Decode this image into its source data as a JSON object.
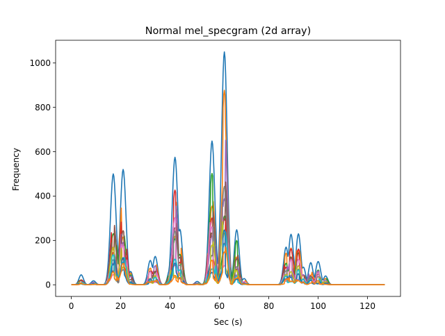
{
  "chart_data": {
    "type": "line",
    "title": "Normal mel_specgram (2d array)",
    "xlabel": "Sec (s)",
    "ylabel": "Frequency",
    "xlim": [
      -6.35,
      133.35
    ],
    "ylim": [
      -52.5,
      1102.5
    ],
    "xticks": [
      0,
      20,
      40,
      60,
      80,
      100,
      120
    ],
    "yticks": [
      0,
      200,
      400,
      600,
      800,
      1000
    ],
    "grid": false,
    "legend": "none",
    "series_count": 12,
    "series_colors": [
      "#1f77b4",
      "#ff7f0e",
      "#2ca02c",
      "#d62728",
      "#9467bd",
      "#8c564b",
      "#e377c2",
      "#7f7f7f",
      "#bcbd22",
      "#17becf"
    ],
    "envelope_peaks": [
      {
        "x": 4,
        "y": 45
      },
      {
        "x": 9,
        "y": 18
      },
      {
        "x": 17,
        "y": 500
      },
      {
        "x": 21,
        "y": 520
      },
      {
        "x": 24,
        "y": 60
      },
      {
        "x": 32,
        "y": 110
      },
      {
        "x": 34,
        "y": 128
      },
      {
        "x": 40,
        "y": 72
      },
      {
        "x": 42,
        "y": 575
      },
      {
        "x": 44,
        "y": 250
      },
      {
        "x": 51,
        "y": 15
      },
      {
        "x": 57,
        "y": 648
      },
      {
        "x": 62,
        "y": 1050
      },
      {
        "x": 67,
        "y": 248
      },
      {
        "x": 70,
        "y": 28
      },
      {
        "x": 87,
        "y": 170
      },
      {
        "x": 89,
        "y": 228
      },
      {
        "x": 92,
        "y": 230
      },
      {
        "x": 94,
        "y": 80
      },
      {
        "x": 97,
        "y": 100
      },
      {
        "x": 100,
        "y": 105
      },
      {
        "x": 103,
        "y": 40
      }
    ]
  }
}
